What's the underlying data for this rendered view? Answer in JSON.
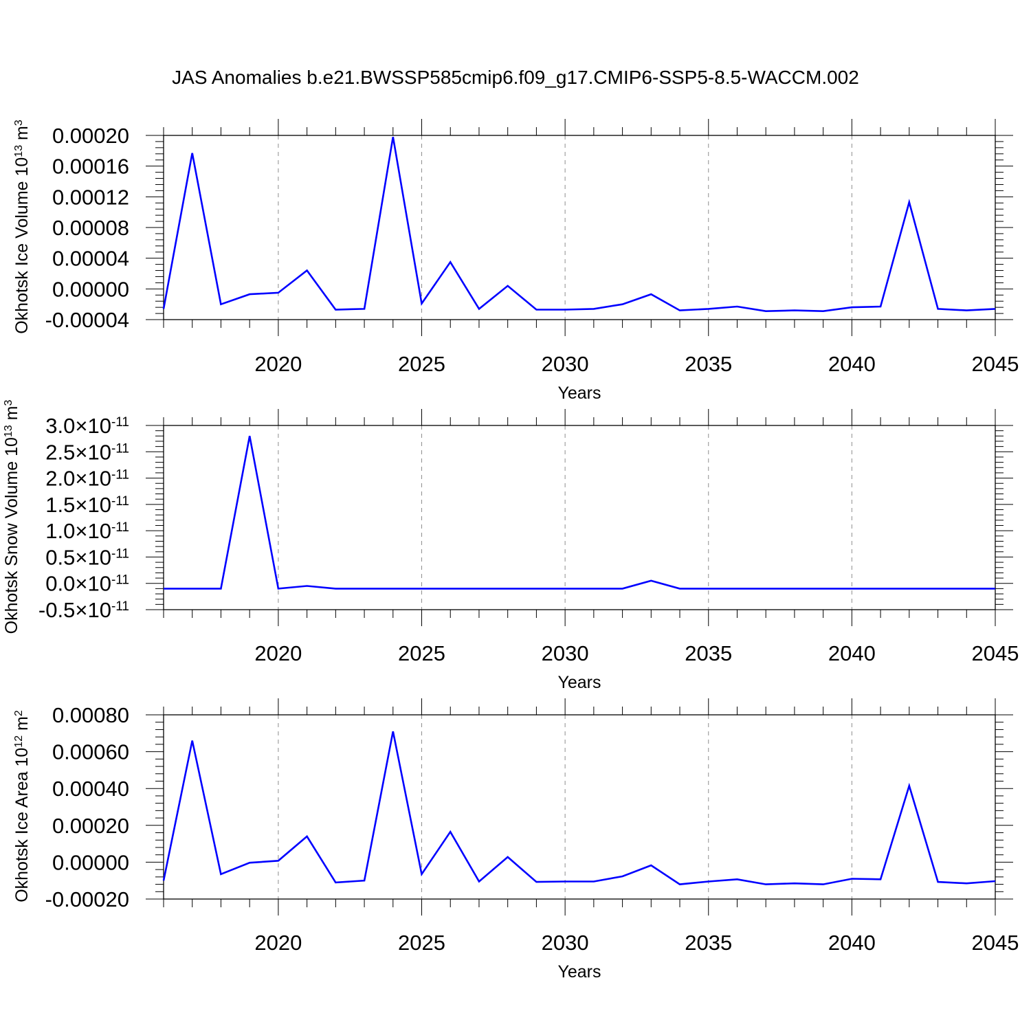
{
  "title": "JAS Anomalies b.e21.BWSSP585cmip6.f09_g17.CMIP6-SSP5-8.5-WACCM.002",
  "colors": {
    "series": "#0000ff",
    "axis": "#000000",
    "grid": "#8c8c8c"
  },
  "chart_data": [
    {
      "type": "line",
      "title": "",
      "xlabel": "Years",
      "ylabel": "Okhotsk Ice Volume 10",
      "ylabel_exp": "13",
      "ylabel_unit": " m",
      "ylabel_unit_exp": "3",
      "xlim": [
        2016,
        2045
      ],
      "ylim": [
        -4e-05,
        0.0002
      ],
      "x_ticks": [
        "2020",
        "2025",
        "2030",
        "2035",
        "2040",
        "2045"
      ],
      "y_ticks": [
        "-0.00004",
        "0.00000",
        "0.00004",
        "0.00008",
        "0.00012",
        "0.00016",
        "0.00020"
      ],
      "grid": "vertical dashed at major x ticks",
      "x": [
        2016,
        2017,
        2018,
        2019,
        2020,
        2021,
        2022,
        2023,
        2024,
        2025,
        2026,
        2027,
        2028,
        2029,
        2030,
        2031,
        2032,
        2033,
        2034,
        2035,
        2036,
        2037,
        2038,
        2039,
        2040,
        2041,
        2042,
        2043,
        2044,
        2045
      ],
      "series": [
        {
          "values": [
            -2.6e-05,
            0.000177,
            -2e-05,
            -7e-06,
            -5e-06,
            2.4e-05,
            -2.7e-05,
            -2.6e-05,
            0.000198,
            -1.9e-05,
            3.5e-05,
            -2.6e-05,
            4e-06,
            -2.7e-05,
            -2.7e-05,
            -2.6e-05,
            -2e-05,
            -7e-06,
            -2.8e-05,
            -2.6e-05,
            -2.3e-05,
            -2.9e-05,
            -2.8e-05,
            -2.9e-05,
            -2.4e-05,
            -2.3e-05,
            0.000113,
            -2.6e-05,
            -2.8e-05,
            -2.6e-05
          ]
        }
      ]
    },
    {
      "type": "line",
      "title": "",
      "xlabel": "Years",
      "ylabel": "Okhotsk Snow Volume 10",
      "ylabel_exp": "13",
      "ylabel_unit": " m",
      "ylabel_unit_exp": "3",
      "xlim": [
        2016,
        2045
      ],
      "ylim": [
        -5e-12,
        3e-11
      ],
      "x_ticks": [
        "2020",
        "2025",
        "2030",
        "2035",
        "2040",
        "2045"
      ],
      "y_ticks": [
        "-0.5",
        "0.0",
        "0.5",
        "1.0",
        "1.5",
        "2.0",
        "2.5",
        "3.0"
      ],
      "y_tick_suffix": "×10",
      "y_tick_suffix_exp": "-11",
      "grid": "vertical dashed at major x ticks",
      "x": [
        2016,
        2017,
        2018,
        2019,
        2020,
        2021,
        2022,
        2023,
        2024,
        2025,
        2026,
        2027,
        2028,
        2029,
        2030,
        2031,
        2032,
        2033,
        2034,
        2035,
        2036,
        2037,
        2038,
        2039,
        2040,
        2041,
        2042,
        2043,
        2044,
        2045
      ],
      "series": [
        {
          "values": [
            -1e-12,
            -1e-12,
            -1e-12,
            2.8e-11,
            -1e-12,
            -5e-13,
            -1e-12,
            -1e-12,
            -1e-12,
            -1e-12,
            -1e-12,
            -1e-12,
            -1e-12,
            -1e-12,
            -1e-12,
            -1e-12,
            -1e-12,
            5e-13,
            -1e-12,
            -1e-12,
            -1e-12,
            -1e-12,
            -1e-12,
            -1e-12,
            -1e-12,
            -1e-12,
            -1e-12,
            -1e-12,
            -1e-12,
            -1e-12
          ]
        }
      ]
    },
    {
      "type": "line",
      "title": "",
      "xlabel": "Years",
      "ylabel": "Okhotsk Ice Area 10",
      "ylabel_exp": "12",
      "ylabel_unit": " m",
      "ylabel_unit_exp": "2",
      "xlim": [
        2016,
        2045
      ],
      "ylim": [
        -0.0002,
        0.0008
      ],
      "x_ticks": [
        "2020",
        "2025",
        "2030",
        "2035",
        "2040",
        "2045"
      ],
      "y_ticks": [
        "-0.00020",
        "0.00000",
        "0.00020",
        "0.00040",
        "0.00060",
        "0.00080"
      ],
      "grid": "vertical dashed at major x ticks",
      "x": [
        2016,
        2017,
        2018,
        2019,
        2020,
        2021,
        2022,
        2023,
        2024,
        2025,
        2026,
        2027,
        2028,
        2029,
        2030,
        2031,
        2032,
        2033,
        2034,
        2035,
        2036,
        2037,
        2038,
        2039,
        2040,
        2041,
        2042,
        2043,
        2044,
        2045
      ],
      "series": [
        {
          "values": [
            -0.0001,
            0.00066,
            -6.5e-05,
            -3e-06,
            8e-06,
            0.00014,
            -0.00011,
            -0.0001,
            0.00071,
            -6.5e-05,
            0.000165,
            -0.000105,
            2.8e-05,
            -0.000107,
            -0.000105,
            -0.000105,
            -7.7e-05,
            -1.7e-05,
            -0.00012,
            -0.000105,
            -9.3e-05,
            -0.00012,
            -0.000115,
            -0.00012,
            -9e-05,
            -9.3e-05,
            0.000415,
            -0.000107,
            -0.000115,
            -0.000103
          ]
        }
      ]
    }
  ]
}
